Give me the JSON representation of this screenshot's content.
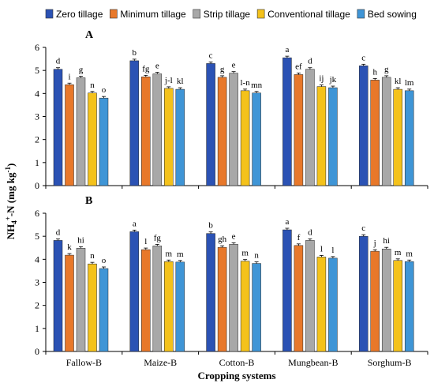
{
  "chart_data": {
    "type": "bar",
    "title": "",
    "xlabel": "Cropping systems",
    "ylabel_main": "NH",
    "ylabel_sub": "4",
    "ylabel_sup": "+",
    "ylabel_rest": "-N (mg kg",
    "ylabel_exp": "-1",
    "ylabel_end": ")",
    "categories": [
      "Fallow-B",
      "Maize-B",
      "Cotton-B",
      "Mungbean-B",
      "Sorghum-B"
    ],
    "legend_position": "top",
    "grid": false,
    "ylim": [
      0,
      6
    ],
    "yticks": [
      "0",
      "1",
      "2",
      "3",
      "4",
      "5",
      "6"
    ],
    "series_names": [
      "Zero tillage",
      "Minimum tillage",
      "Strip tillage",
      "Conventional tillage",
      "Bed sowing"
    ],
    "colors": [
      "#2b52b4",
      "#e8782a",
      "#a8a8a8",
      "#f4c21b",
      "#3f95d6"
    ],
    "panels": [
      {
        "label": "A",
        "series": [
          {
            "name": "Zero tillage",
            "values": [
              5.05,
              5.42,
              5.3,
              5.55,
              5.2
            ]
          },
          {
            "name": "Minimum tillage",
            "values": [
              4.38,
              4.72,
              4.7,
              4.82,
              4.58
            ]
          },
          {
            "name": "Strip tillage",
            "values": [
              4.68,
              4.85,
              4.88,
              5.05,
              4.7
            ]
          },
          {
            "name": "Conventional tillage",
            "values": [
              4.02,
              4.22,
              4.12,
              4.3,
              4.18
            ]
          },
          {
            "name": "Bed sowing",
            "values": [
              3.8,
              4.18,
              4.02,
              4.25,
              4.12
            ]
          }
        ],
        "letters": [
          [
            "d",
            "i",
            "g",
            "n",
            "o"
          ],
          [
            "b",
            "fg",
            "e",
            "j-l",
            "kl"
          ],
          [
            "c",
            "g",
            "e",
            "l-n",
            "mn"
          ],
          [
            "a",
            "ef",
            "d",
            "ij",
            "jk"
          ],
          [
            "c",
            "h",
            "g",
            "kl",
            "lm"
          ]
        ]
      },
      {
        "label": "B",
        "series": [
          {
            "name": "Zero tillage",
            "values": [
              4.82,
              5.2,
              5.12,
              5.28,
              5.0
            ]
          },
          {
            "name": "Minimum tillage",
            "values": [
              4.18,
              4.42,
              4.52,
              4.6,
              4.35
            ]
          },
          {
            "name": "Strip tillage",
            "values": [
              4.48,
              4.58,
              4.65,
              4.82,
              4.45
            ]
          },
          {
            "name": "Conventional tillage",
            "values": [
              3.8,
              3.9,
              3.92,
              4.1,
              3.95
            ]
          },
          {
            "name": "Bed sowing",
            "values": [
              3.6,
              3.88,
              3.82,
              4.05,
              3.9
            ]
          }
        ],
        "letters": [
          [
            "d",
            "k",
            "hi",
            "n",
            "o"
          ],
          [
            "a",
            "l",
            "fg",
            "m",
            "m"
          ],
          [
            "b",
            "gh",
            "e",
            "m",
            "n"
          ],
          [
            "a",
            "f",
            "d",
            "l",
            "l"
          ],
          [
            "c",
            "j",
            "hi",
            "m",
            "m"
          ]
        ]
      }
    ]
  }
}
